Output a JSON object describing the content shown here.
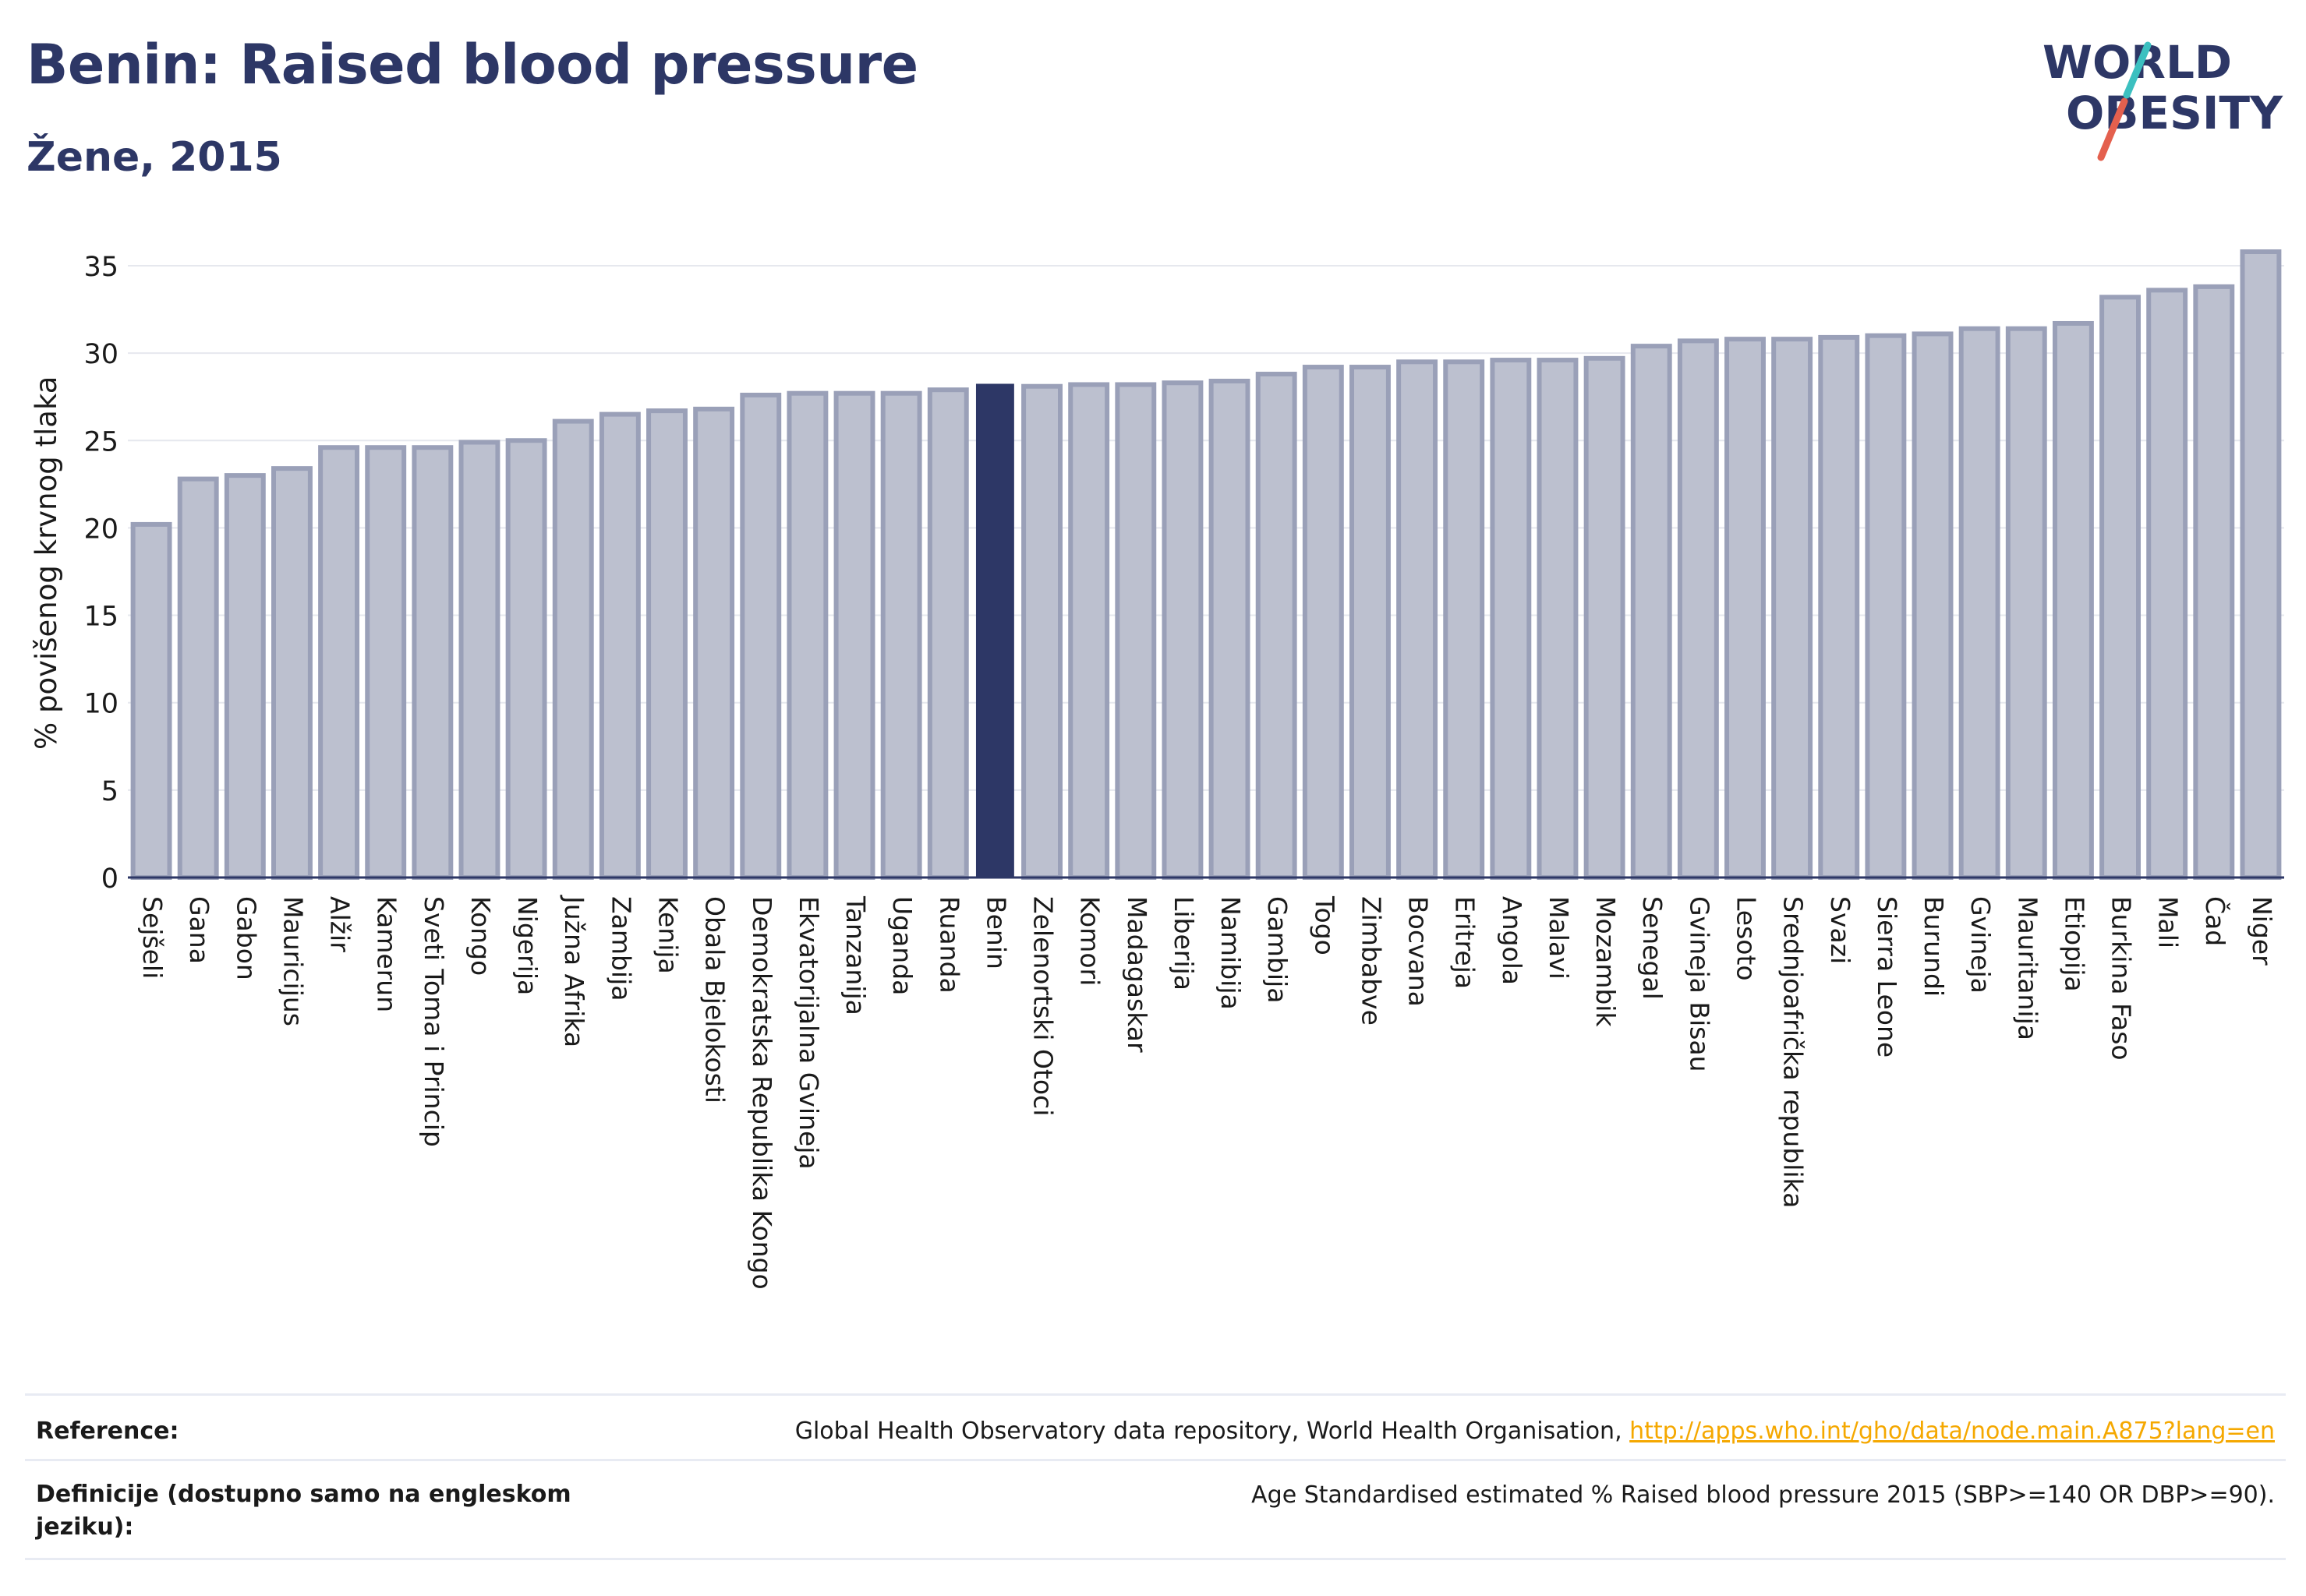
{
  "header": {
    "title": "Benin: Raised blood pressure",
    "subtitle": "Žene, 2015"
  },
  "logo": {
    "line1": "WORLD",
    "line2": "OBESITY",
    "colors": {
      "text": "#2d3766",
      "slash_teal": "#3cc0c0",
      "slash_red": "#e4604e"
    }
  },
  "colors": {
    "bar_fill": "#bcc0cf",
    "bar_stroke": "#9aa0b8",
    "highlight": "#2d3766",
    "grid": "#e6e8ee",
    "axis": "#2d3766"
  },
  "chart_data": {
    "type": "bar",
    "ylabel": "% povišenog krvnog tlaka",
    "ylim": [
      0,
      36
    ],
    "yticks": [
      0,
      5,
      10,
      15,
      20,
      25,
      30,
      35
    ],
    "grid": true,
    "highlight_category": "Benin",
    "categories": [
      "Sejšeli",
      "Gana",
      "Gabon",
      "Mauricijus",
      "Alžir",
      "Kamerun",
      "Sveti Toma i Princip",
      "Kongo",
      "Nigerija",
      "Južna Afrika",
      "Zambija",
      "Kenija",
      "Obala Bjelokosti",
      "Demokratska Republika Kongo",
      "Ekvatorijalna Gvineja",
      "Tanzanija",
      "Uganda",
      "Ruanda",
      "Benin",
      "Zelenortski Otoci",
      "Komori",
      "Madagaskar",
      "Liberija",
      "Namibija",
      "Gambija",
      "Togo",
      "Zimbabve",
      "Bocvana",
      "Eritreja",
      "Angola",
      "Malavi",
      "Mozambik",
      "Senegal",
      "Gvineja Bisau",
      "Lesoto",
      "Srednjoafrička republika",
      "Svazi",
      "Sierra Leone",
      "Burundi",
      "Gvineja",
      "Mauritanija",
      "Etiopija",
      "Burkina Faso",
      "Mali",
      "Čad",
      "Niger"
    ],
    "values": [
      20.2,
      22.8,
      23.0,
      23.4,
      24.6,
      24.6,
      24.6,
      24.9,
      25.0,
      26.1,
      26.5,
      26.7,
      26.8,
      27.6,
      27.7,
      27.7,
      27.7,
      27.9,
      28.2,
      28.1,
      28.2,
      28.2,
      28.3,
      28.4,
      28.8,
      29.2,
      29.2,
      29.5,
      29.5,
      29.6,
      29.6,
      29.7,
      30.4,
      30.7,
      30.8,
      30.8,
      30.9,
      31.0,
      31.1,
      31.4,
      31.4,
      31.7,
      33.2,
      33.6,
      33.8,
      35.8
    ]
  },
  "footer": {
    "reference_label": "Reference:",
    "reference_text": "Global Health Observatory data repository, World Health Organisation, ",
    "reference_link": "http://apps.who.int/gho/data/node.main.A875?lang=en",
    "definition_label": "Definicije (dostupno samo na engleskom jeziku):",
    "definition_text": "Age Standardised estimated % Raised blood pressure 2015 (SBP>=140 OR DBP>=90)."
  }
}
